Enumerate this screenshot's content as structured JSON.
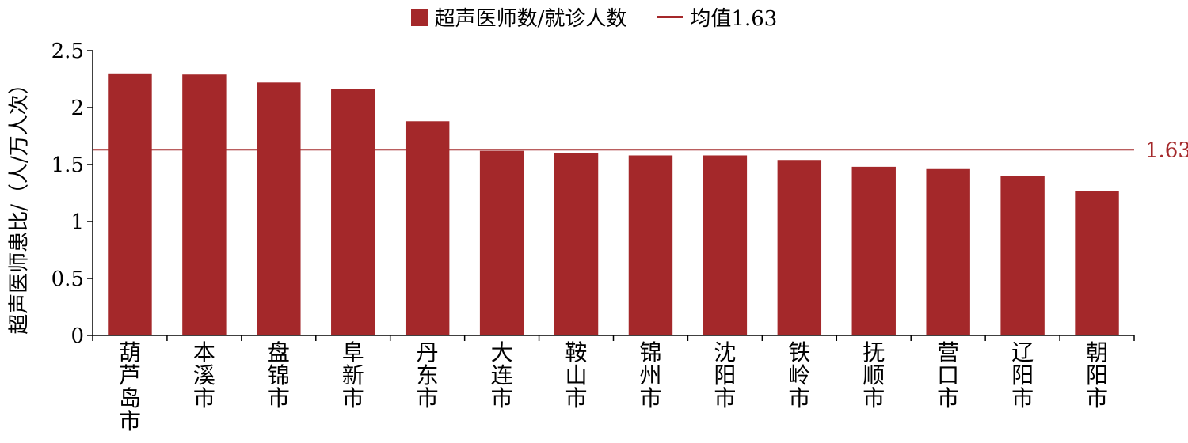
{
  "chart_data": {
    "type": "bar",
    "title": "",
    "xlabel": "",
    "ylabel": "超声医师患比/（人/万人次）",
    "ylim": [
      0,
      2.5
    ],
    "yticks": [
      0,
      0.5,
      1,
      1.5,
      2,
      2.5
    ],
    "ytick_labels": [
      "0",
      "0.5",
      "1",
      "1.5",
      "2",
      "2.5"
    ],
    "grid": false,
    "legend_position": "top-center",
    "categories": [
      "葫芦岛市",
      "本溪市",
      "盘锦市",
      "阜新市",
      "丹东市",
      "大连市",
      "鞍山市",
      "锦州市",
      "沈阳市",
      "铁岭市",
      "抚顺市",
      "营口市",
      "辽阳市",
      "朝阳市"
    ],
    "series": [
      {
        "name": "超声医师数/就诊人数",
        "values": [
          2.3,
          2.29,
          2.22,
          2.16,
          1.88,
          1.62,
          1.6,
          1.58,
          1.58,
          1.54,
          1.48,
          1.46,
          1.4,
          1.27
        ],
        "color": "#a4282a"
      }
    ],
    "reference_line": {
      "name": "均值1.63",
      "value": 1.63,
      "label": "1.63",
      "color": "#a4282a"
    }
  }
}
